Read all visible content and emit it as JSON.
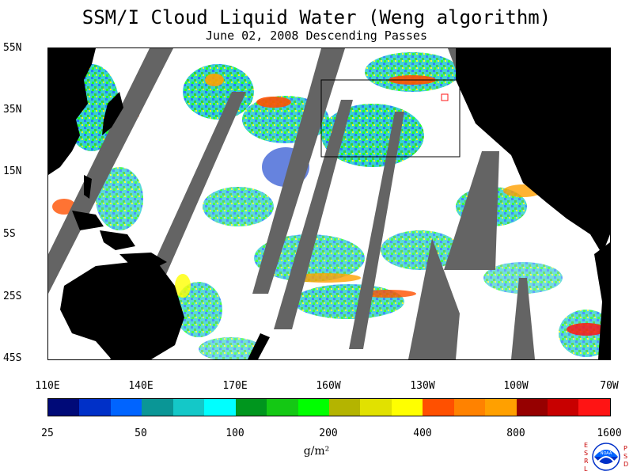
{
  "title": "SSM/I Cloud Liquid Water (Weng algorithm)",
  "subtitle": "June 02, 2008  Descending Passes",
  "map": {
    "lat_labels": [
      "55N",
      "35N",
      "15N",
      "5S",
      "25S",
      "45S"
    ],
    "lon_labels": [
      "110E",
      "140E",
      "170E",
      "160W",
      "130W",
      "100W",
      "70W"
    ],
    "colors": {
      "land": "#000000",
      "nodata": "#646464",
      "ocean_clear": "#ffffff"
    }
  },
  "colorbar": {
    "colors": [
      "#000a78",
      "#0030c8",
      "#0064ff",
      "#0a9696",
      "#14c8c8",
      "#00ffff",
      "#00961e",
      "#14c814",
      "#00ff00",
      "#b4b400",
      "#e1e100",
      "#ffff00",
      "#ff5000",
      "#ff8200",
      "#ffa000",
      "#960000",
      "#c80000",
      "#ff1414"
    ],
    "labels": [
      "25",
      "50",
      "100",
      "200",
      "400",
      "800",
      "1600"
    ],
    "units": "g/m²"
  },
  "logo": {
    "left_letters": [
      "E",
      "S",
      "R",
      "L"
    ],
    "center_text": "NOAA",
    "right_letters": [
      "P",
      "S",
      "D"
    ]
  }
}
